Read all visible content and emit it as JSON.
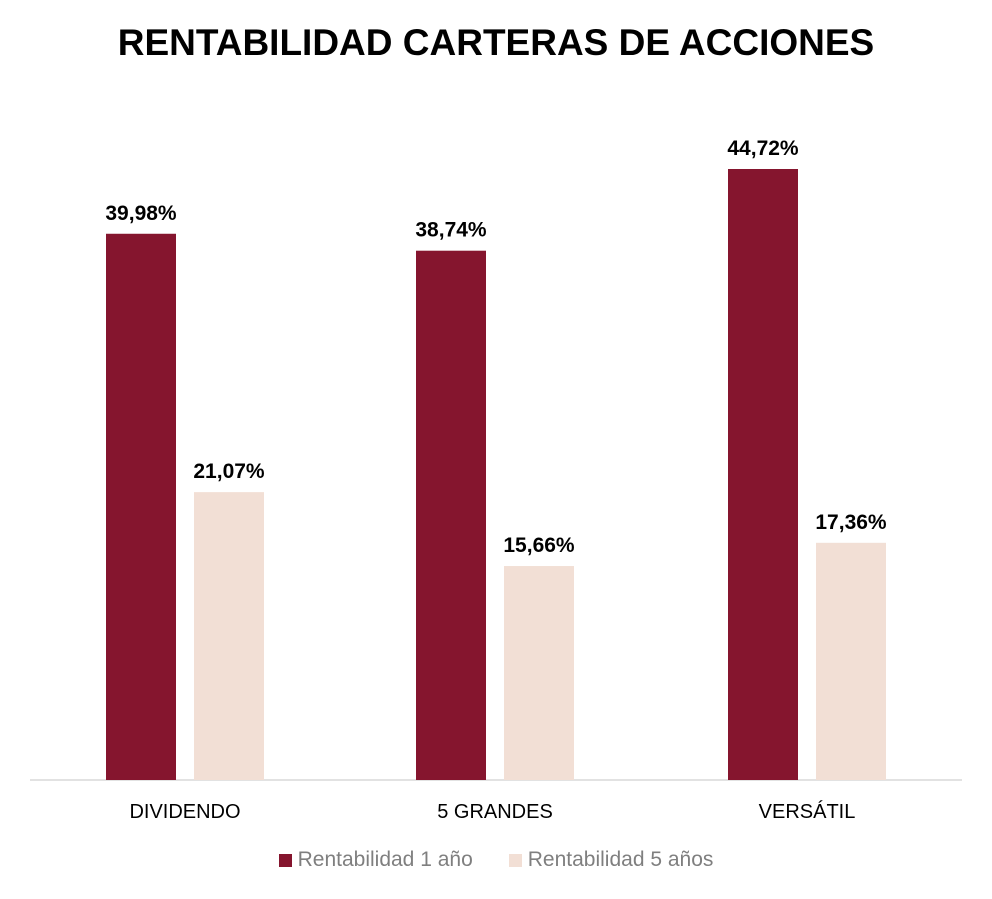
{
  "chart_data": {
    "type": "bar",
    "title": "RENTABILIDAD CARTERAS DE ACCIONES",
    "categories": [
      "DIVIDENDO",
      "5 GRANDES",
      "VERSÁTIL"
    ],
    "series": [
      {
        "name": "Rentabilidad 1 año",
        "values": [
          39.98,
          38.74,
          44.72
        ],
        "labels": [
          "39,98%",
          "38,74%",
          "44,72%"
        ],
        "color": "#85152E"
      },
      {
        "name": "Rentabilidad 5 años",
        "values": [
          21.07,
          15.66,
          17.36
        ],
        "labels": [
          "21,07%",
          "15,66%",
          "17,36%"
        ],
        "color": "#F2DFD5"
      }
    ],
    "ylim": [
      0,
      44.72
    ],
    "grid": false,
    "legend": "bottom"
  }
}
